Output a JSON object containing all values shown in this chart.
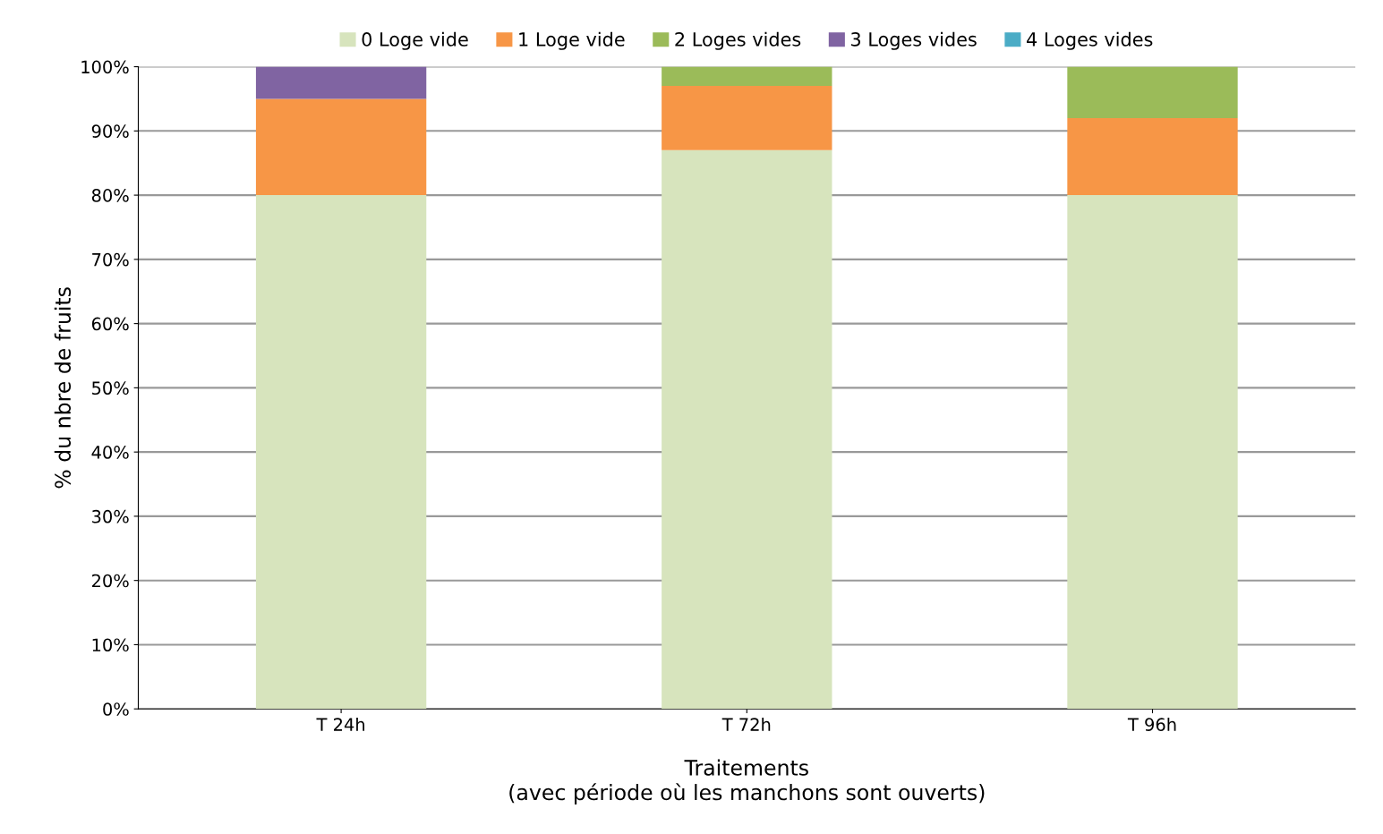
{
  "chart_data": {
    "type": "bar",
    "stacked": true,
    "categories": [
      "T 24h",
      "T 72h",
      "T 96h"
    ],
    "series": [
      {
        "name": "0 Loge vide",
        "color": "#d7e4bd",
        "values": [
          80,
          87,
          80
        ]
      },
      {
        "name": "1 Loge vide",
        "color": "#f79646",
        "values": [
          15,
          10,
          12
        ]
      },
      {
        "name": "2 Loges vides",
        "color": "#9bbb59",
        "values": [
          0,
          3,
          8
        ]
      },
      {
        "name": "3 Loges vides",
        "color": "#8064a2",
        "values": [
          5,
          0,
          0
        ]
      },
      {
        "name": "4 Loges vides",
        "color": "#4bacc6",
        "values": [
          0,
          0,
          0
        ]
      }
    ],
    "ylim": [
      0,
      100
    ],
    "yticks": [
      {
        "value": 0,
        "label": "0%"
      },
      {
        "value": 10,
        "label": "10%"
      },
      {
        "value": 20,
        "label": "20%"
      },
      {
        "value": 30,
        "label": "30%"
      },
      {
        "value": 40,
        "label": "40%"
      },
      {
        "value": 50,
        "label": "50%"
      },
      {
        "value": 60,
        "label": "60%"
      },
      {
        "value": 70,
        "label": "70%"
      },
      {
        "value": 80,
        "label": "80%"
      },
      {
        "value": 90,
        "label": "90%"
      },
      {
        "value": 100,
        "label": "100%"
      }
    ],
    "ylabel": "% du nbre de fruits",
    "xlabel": "Traitements\n(avec période où les manchons sont ouverts)",
    "grid": "y",
    "legend": "top"
  }
}
